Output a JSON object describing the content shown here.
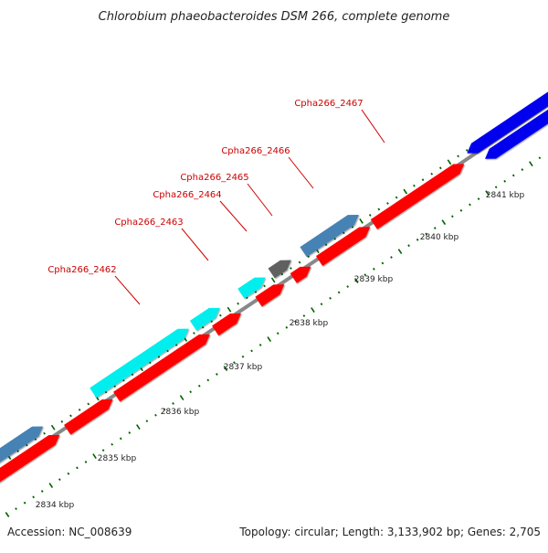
{
  "title": "Chlorobium phaeobacteroides DSM 266, complete genome",
  "accession_text": "Accession: NC_008639",
  "summary_text": "Topology: circular; Length: 3,133,902 bp; Genes: 2,705",
  "scale_labels": [
    "2834 kbp",
    "2835 kbp",
    "2836 kbp",
    "2837 kbp",
    "2838 kbp",
    "2839 kbp",
    "2840 kbp",
    "2841 kbp"
  ],
  "gene_labels": [
    "Cpha266_2462",
    "Cpha266_2463",
    "Cpha266_2464",
    "Cpha266_2465",
    "Cpha266_2466",
    "Cpha266_2467"
  ],
  "colors": {
    "backbone": "#888888",
    "cds_red": "#ff0000",
    "cds_cyan": "#00eeee",
    "cds_steelblue": "#4682b4",
    "cds_blue": "#0000ee",
    "cds_gray": "#606060",
    "tick": "#006400",
    "label_red": "#cc0000"
  }
}
